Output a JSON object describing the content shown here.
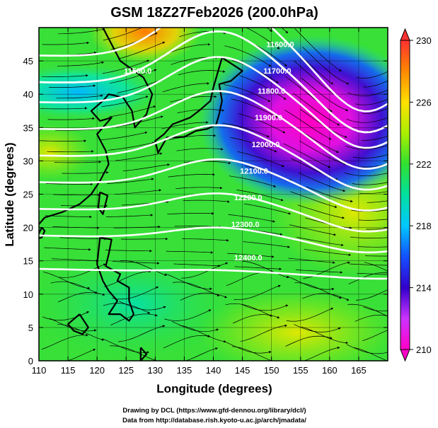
{
  "chart_data": {
    "type": "heatmap",
    "title": "GSM 18Z27Feb2026 (200.0hPa)",
    "xlabel": "Longitude (degrees)",
    "ylabel": "Latitude  (degrees)",
    "xlim": [
      110,
      170
    ],
    "ylim": [
      0,
      50
    ],
    "x_ticks": [
      "110",
      "115",
      "120",
      "125",
      "130",
      "135",
      "140",
      "145",
      "150",
      "155",
      "160",
      "165"
    ],
    "y_ticks": [
      "0",
      "5",
      "10",
      "15",
      "20",
      "25",
      "30",
      "35",
      "40",
      "45"
    ],
    "colorbar": {
      "min": 210,
      "max": 230,
      "ticks": [
        "210",
        "214",
        "218",
        "222",
        "226",
        "230"
      ],
      "colors": [
        "#ff00c8",
        "#cc33ff",
        "#3300cc",
        "#1450ff",
        "#00c8ff",
        "#00e0a0",
        "#30e030",
        "#aaf000",
        "#ffe000",
        "#ff8800",
        "#ff3030"
      ]
    },
    "contours": [
      {
        "label": "11500.0",
        "lon": 127,
        "lat": 43.5
      },
      {
        "label": "11600.0",
        "lon": 151.5,
        "lat": 47.5
      },
      {
        "label": "11700.0",
        "lon": 151,
        "lat": 43.5
      },
      {
        "label": "11800.0",
        "lon": 150,
        "lat": 40.5
      },
      {
        "label": "11900.0",
        "lon": 149.5,
        "lat": 36.5
      },
      {
        "label": "12000.0",
        "lon": 149,
        "lat": 32.5
      },
      {
        "label": "12100.0",
        "lon": 147,
        "lat": 28.5
      },
      {
        "label": "12200.0",
        "lon": 146,
        "lat": 24.5
      },
      {
        "label": "12300.0",
        "lon": 145.5,
        "lat": 20.5
      },
      {
        "label": "12400.0",
        "lon": 146,
        "lat": 15.5
      }
    ],
    "annotations": {
      "credit_line1": "Drawing by DCL (https://www.gfd-dennou.org/library/dcl/)",
      "credit_line2": "Data from http://database.rish.kyoto-u.ac.jp/arch/jmadata/"
    }
  }
}
